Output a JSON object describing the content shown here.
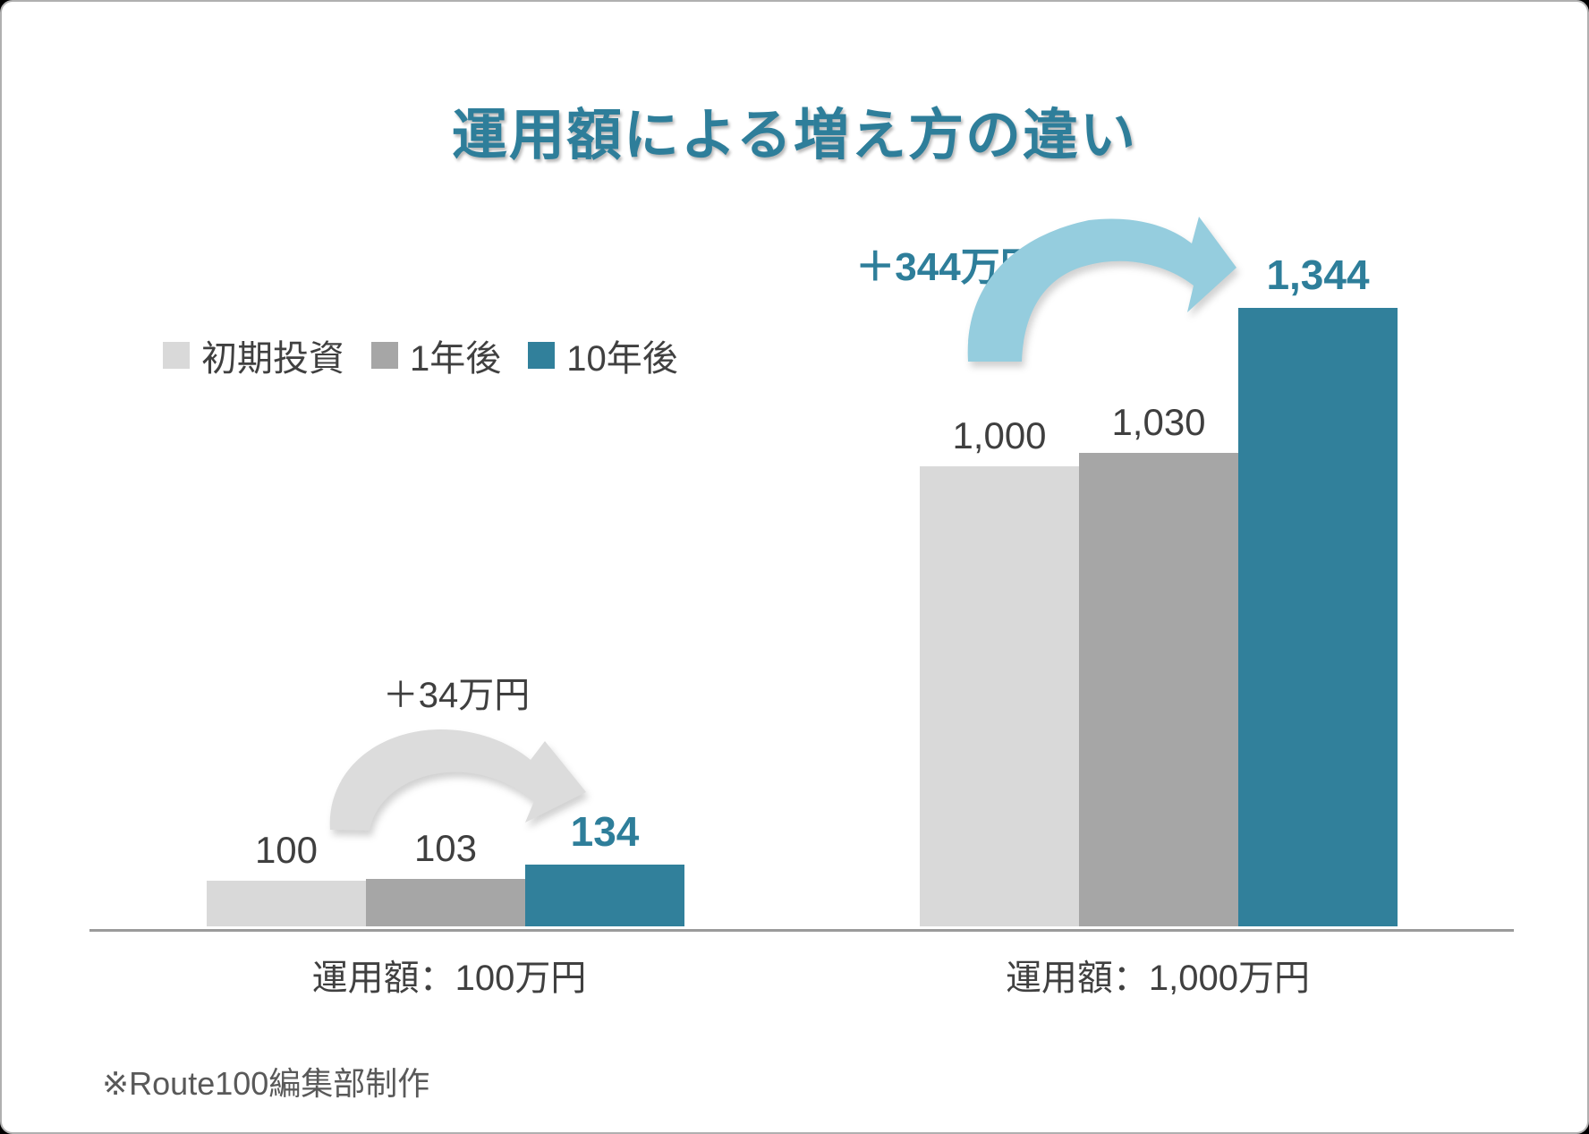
{
  "page": {
    "title": "運用額による増え方の違い",
    "footer": "※Route100編集部制作"
  },
  "colors": {
    "teal": "#31809B",
    "teal_text": "#2E7E9A",
    "light_gray": "#D9D9D9",
    "mid_gray": "#A6A6A6",
    "gray_arrow": "#DCDCDC",
    "blue_arrow": "#95CDDE",
    "dark_text": "#3F3F3F",
    "footer_text": "#595959",
    "axis_line": "#9B9B9B"
  },
  "chart_data": {
    "type": "bar",
    "title": "運用額による増え方の違い",
    "categories": [
      "運用額：100万円",
      "運用額：1,000万円"
    ],
    "series": [
      {
        "name": "初期投資",
        "values": [
          100,
          1000
        ],
        "color": "#D9D9D9"
      },
      {
        "name": "1年後",
        "values": [
          103,
          1030
        ],
        "color": "#A6A6A6"
      },
      {
        "name": "10年後",
        "values": [
          134,
          1344
        ],
        "color": "#31809B"
      }
    ],
    "value_labels": [
      [
        "100",
        "103",
        "134"
      ],
      [
        "1,000",
        "1,030",
        "1,344"
      ]
    ],
    "annotations": [
      {
        "text": "＋34万円",
        "group": "運用額：100万円"
      },
      {
        "text": "＋344万円",
        "group": "運用額：1,000万円"
      }
    ],
    "ylim": [
      0,
      1400
    ],
    "grid": false,
    "legend_position": "upper-left",
    "xlabel": "",
    "ylabel": ""
  }
}
